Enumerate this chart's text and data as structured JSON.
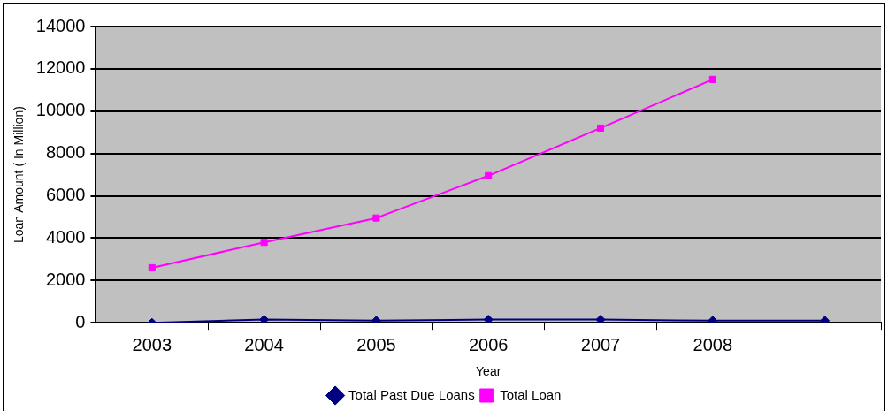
{
  "chart_data": {
    "type": "line",
    "xlabel": "Year",
    "ylabel": "Loan Amount ( In Million)",
    "categories": [
      "2003",
      "2004",
      "2005",
      "2006",
      "2007",
      "2008",
      null
    ],
    "series": [
      {
        "name": "Total Past Due Loans",
        "color": "#000080",
        "marker": "diamond",
        "values": [
          0,
          150,
          100,
          150,
          150,
          100,
          100
        ]
      },
      {
        "name": "Total Loan",
        "color": "#ff00ff",
        "marker": "square",
        "values": [
          2600,
          3800,
          4950,
          6950,
          9200,
          11500,
          null
        ]
      }
    ],
    "ylim": [
      0,
      14000
    ],
    "yticks": [
      0,
      2000,
      4000,
      6000,
      8000,
      10000,
      12000,
      14000
    ],
    "grid": "y",
    "legend": "bottom",
    "line_style": "solid"
  }
}
